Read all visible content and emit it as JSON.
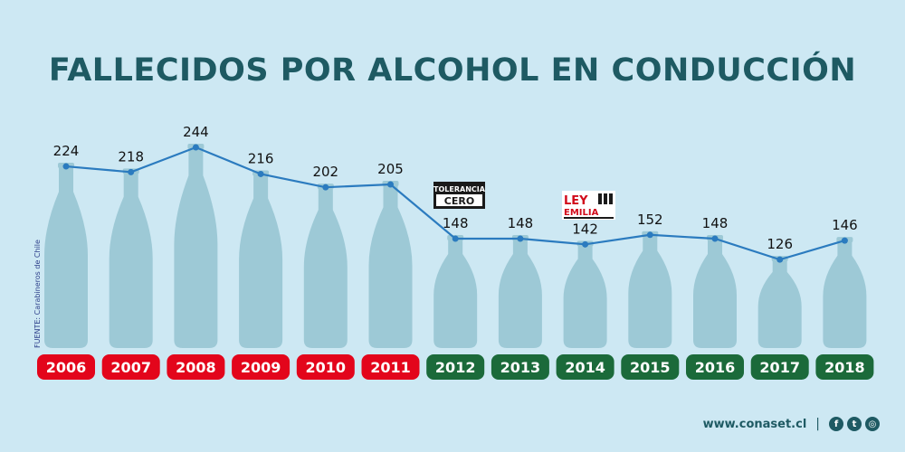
{
  "title": "FALLECIDOS POR ALCOHOL EN CONDUCCIÓN",
  "source": "FUENTE: Carabineros de Chile",
  "footer": {
    "website": "www.conaset.cl",
    "separator": "|",
    "social_icons": [
      "facebook-icon",
      "twitter-icon",
      "instagram-icon"
    ]
  },
  "logos": {
    "tolerancia_cero": {
      "line1": "TOLERANCIA",
      "line2": "CERO"
    },
    "ley_emilia": {
      "line1": "LEY",
      "line2": "EMILIA"
    }
  },
  "colors": {
    "background": "#cde8f3",
    "bottle": "#9dc9d6",
    "line": "#2b7bbf",
    "year_before_2012": "#e3051b",
    "year_from_2012": "#1b6a3a",
    "title": "#1e5a63"
  },
  "chart_data": {
    "type": "line",
    "title": "FALLECIDOS POR ALCOHOL EN CONDUCCIÓN",
    "categories": [
      "2006",
      "2007",
      "2008",
      "2009",
      "2010",
      "2011",
      "2012",
      "2013",
      "2014",
      "2015",
      "2016",
      "2017",
      "2018"
    ],
    "values": [
      224,
      218,
      244,
      216,
      202,
      205,
      148,
      148,
      142,
      152,
      148,
      126,
      146
    ],
    "xlabel": "",
    "ylabel": "",
    "grid": false,
    "legend": "none",
    "annotations": [
      {
        "at": "2012",
        "text": "TOLERANCIA CERO"
      },
      {
        "at": "2014",
        "text": "LEY EMILIA"
      }
    ]
  }
}
